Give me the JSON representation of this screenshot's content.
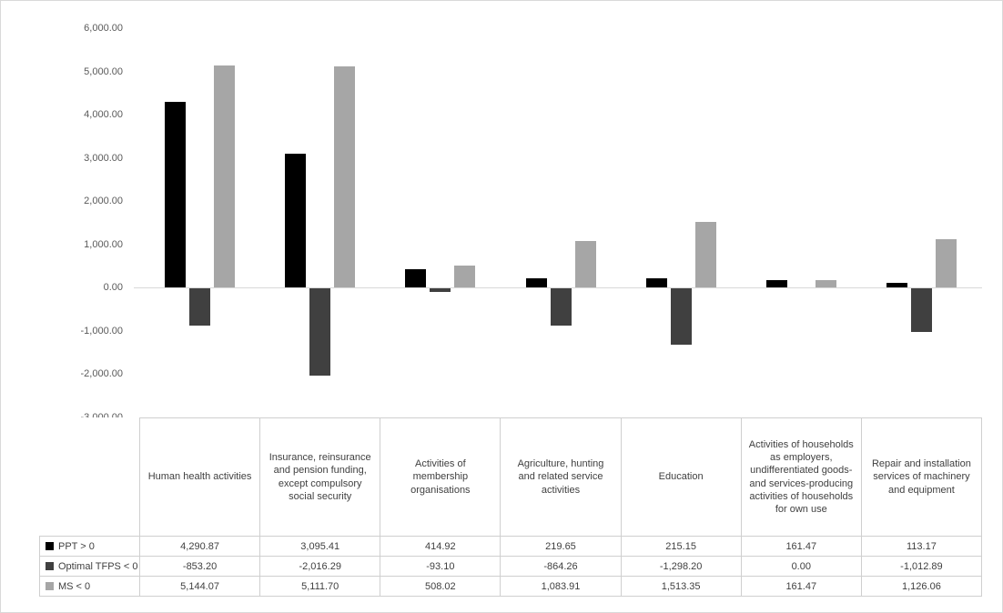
{
  "figure": {
    "background": "#ffffff",
    "border_color": "#d9d9d9",
    "zero_line_color": "#d9d9d9",
    "table_border_color": "#cfcfcf"
  },
  "chart_data": {
    "type": "bar",
    "title": "",
    "xlabel": "",
    "ylabel": "",
    "grid": false,
    "legend_position": "table-left",
    "ylim": [
      -3000,
      6000
    ],
    "ytick_step": 1000,
    "categories": [
      "Human health activities",
      "Insurance, reinsurance and pension funding, except compulsory social security",
      "Activities of membership organisations",
      "Agriculture, hunting and related service activities",
      "Education",
      "Activities of households as employers, undifferentiated goods- and services-producing activities of households for own use",
      "Repair and installation services of machinery and equipment"
    ],
    "series": [
      {
        "name": "PPT > 0",
        "color": "#000000",
        "values": [
          4290.87,
          3095.41,
          414.92,
          219.65,
          215.15,
          161.47,
          113.17
        ]
      },
      {
        "name": "Optimal TFPS < 0",
        "color": "#404040",
        "values": [
          -853.2,
          -2016.29,
          -93.1,
          -864.26,
          -1298.2,
          0.0,
          -1012.89
        ]
      },
      {
        "name": "MS < 0",
        "color": "#a6a6a6",
        "values": [
          5144.07,
          5111.7,
          508.02,
          1083.91,
          1513.35,
          161.47,
          1126.06
        ]
      }
    ]
  }
}
